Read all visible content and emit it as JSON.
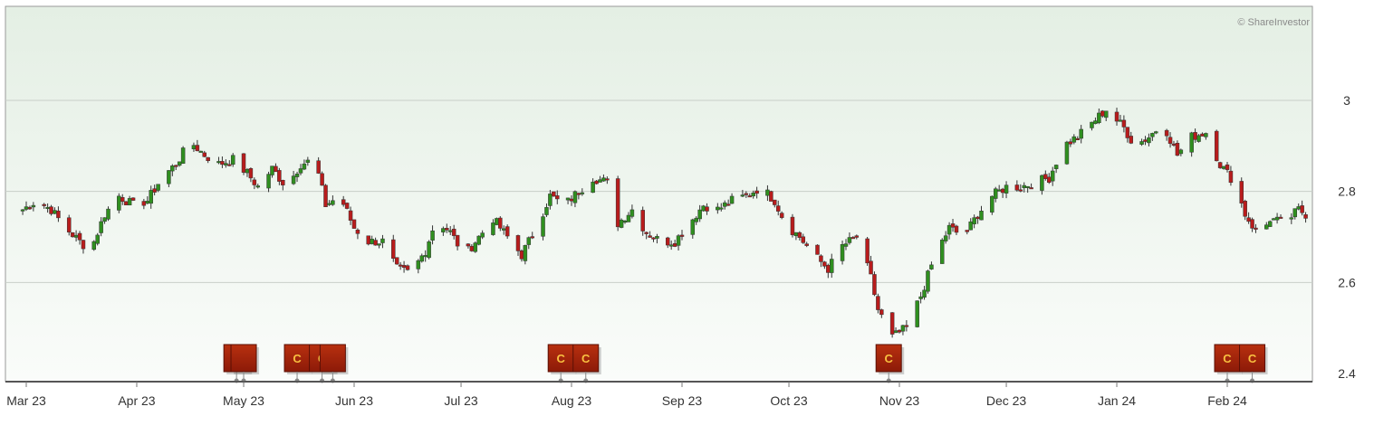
{
  "credit": "© ShareInvestor",
  "chart_data": {
    "type": "candlestick",
    "ylim": [
      2.4,
      3.0
    ],
    "yticks": [
      {
        "value": 2.4,
        "label": "2.4"
      },
      {
        "value": 2.6,
        "label": "2.6"
      },
      {
        "value": 2.8,
        "label": "2.8"
      },
      {
        "value": 3.0,
        "label": "3"
      }
    ],
    "months": [
      {
        "label": "Mar 23",
        "date": "2023-03-01"
      },
      {
        "label": "Apr 23",
        "date": "2023-04-01"
      },
      {
        "label": "May 23",
        "date": "2023-05-01"
      },
      {
        "label": "Jun 23",
        "date": "2023-06-01"
      },
      {
        "label": "Jul 23",
        "date": "2023-07-01"
      },
      {
        "label": "Aug 23",
        "date": "2023-08-01"
      },
      {
        "label": "Sep 23",
        "date": "2023-09-01"
      },
      {
        "label": "Oct 23",
        "date": "2023-10-01"
      },
      {
        "label": "Nov 23",
        "date": "2023-11-01"
      },
      {
        "label": "Dec 23",
        "date": "2023-12-01"
      },
      {
        "label": "Jan 24",
        "date": "2024-01-01"
      },
      {
        "label": "Feb 24",
        "date": "2024-02-01"
      }
    ],
    "series_points": [
      [
        "2023-02-28",
        2.76
      ],
      [
        "2023-03-04",
        2.78
      ],
      [
        "2023-03-08",
        2.76
      ],
      [
        "2023-03-12",
        2.72
      ],
      [
        "2023-03-16",
        2.69
      ],
      [
        "2023-03-19",
        2.67
      ],
      [
        "2023-03-23",
        2.75
      ],
      [
        "2023-03-27",
        2.79
      ],
      [
        "2023-03-31",
        2.77
      ],
      [
        "2023-04-04",
        2.78
      ],
      [
        "2023-04-08",
        2.83
      ],
      [
        "2023-04-12",
        2.86
      ],
      [
        "2023-04-16",
        2.91
      ],
      [
        "2023-04-20",
        2.88
      ],
      [
        "2023-04-24",
        2.86
      ],
      [
        "2023-04-28",
        2.87
      ],
      [
        "2023-05-02",
        2.84
      ],
      [
        "2023-05-05",
        2.81
      ],
      [
        "2023-05-09",
        2.85
      ],
      [
        "2023-05-13",
        2.81
      ],
      [
        "2023-05-17",
        2.86
      ],
      [
        "2023-05-21",
        2.87
      ],
      [
        "2023-05-24",
        2.77
      ],
      [
        "2023-05-28",
        2.79
      ],
      [
        "2023-06-01",
        2.72
      ],
      [
        "2023-06-05",
        2.69
      ],
      [
        "2023-06-09",
        2.69
      ],
      [
        "2023-06-13",
        2.63
      ],
      [
        "2023-06-17",
        2.62
      ],
      [
        "2023-06-21",
        2.67
      ],
      [
        "2023-06-24",
        2.74
      ],
      [
        "2023-06-28",
        2.71
      ],
      [
        "2023-07-02",
        2.66
      ],
      [
        "2023-07-06",
        2.7
      ],
      [
        "2023-07-10",
        2.74
      ],
      [
        "2023-07-14",
        2.7
      ],
      [
        "2023-07-18",
        2.66
      ],
      [
        "2023-07-22",
        2.72
      ],
      [
        "2023-07-26",
        2.79
      ],
      [
        "2023-07-30",
        2.77
      ],
      [
        "2023-08-03",
        2.8
      ],
      [
        "2023-08-07",
        2.83
      ],
      [
        "2023-08-11",
        2.82
      ],
      [
        "2023-08-14",
        2.73
      ],
      [
        "2023-08-18",
        2.76
      ],
      [
        "2023-08-22",
        2.71
      ],
      [
        "2023-08-26",
        2.69
      ],
      [
        "2023-08-30",
        2.69
      ],
      [
        "2023-09-03",
        2.73
      ],
      [
        "2023-09-07",
        2.77
      ],
      [
        "2023-09-11",
        2.76
      ],
      [
        "2023-09-15",
        2.78
      ],
      [
        "2023-09-19",
        2.79
      ],
      [
        "2023-09-23",
        2.81
      ],
      [
        "2023-09-27",
        2.78
      ],
      [
        "2023-09-30",
        2.73
      ],
      [
        "2023-10-04",
        2.7
      ],
      [
        "2023-10-08",
        2.66
      ],
      [
        "2023-10-12",
        2.63
      ],
      [
        "2023-10-16",
        2.68
      ],
      [
        "2023-10-20",
        2.7
      ],
      [
        "2023-10-24",
        2.61
      ],
      [
        "2023-10-26",
        2.54
      ],
      [
        "2023-10-30",
        2.48
      ],
      [
        "2023-11-03",
        2.5
      ],
      [
        "2023-11-07",
        2.57
      ],
      [
        "2023-11-11",
        2.66
      ],
      [
        "2023-11-15",
        2.72
      ],
      [
        "2023-11-19",
        2.7
      ],
      [
        "2023-11-23",
        2.75
      ],
      [
        "2023-11-27",
        2.79
      ],
      [
        "2023-12-01",
        2.81
      ],
      [
        "2023-12-05",
        2.81
      ],
      [
        "2023-12-09",
        2.82
      ],
      [
        "2023-12-13",
        2.83
      ],
      [
        "2023-12-17",
        2.9
      ],
      [
        "2023-12-21",
        2.92
      ],
      [
        "2023-12-25",
        2.95
      ],
      [
        "2023-12-29",
        2.98
      ],
      [
        "2024-01-03",
        2.94
      ],
      [
        "2024-01-06",
        2.9
      ],
      [
        "2024-01-10",
        2.92
      ],
      [
        "2024-01-14",
        2.95
      ],
      [
        "2024-01-18",
        2.88
      ],
      [
        "2024-01-22",
        2.92
      ],
      [
        "2024-01-26",
        2.93
      ],
      [
        "2024-01-30",
        2.86
      ],
      [
        "2024-02-03",
        2.82
      ],
      [
        "2024-02-06",
        2.75
      ],
      [
        "2024-02-10",
        2.7
      ],
      [
        "2024-02-13",
        2.74
      ],
      [
        "2024-02-17",
        2.73
      ],
      [
        "2024-02-21",
        2.76
      ],
      [
        "2024-02-23",
        2.75
      ]
    ],
    "markers": [
      {
        "label": "C",
        "date": "2023-04-29"
      },
      {
        "label": "",
        "date": "2023-05-01"
      },
      {
        "label": "C",
        "date": "2023-05-16"
      },
      {
        "label": "C",
        "date": "2023-05-23"
      },
      {
        "label": "",
        "date": "2023-05-26"
      },
      {
        "label": "C",
        "date": "2023-07-29"
      },
      {
        "label": "C",
        "date": "2023-08-05"
      },
      {
        "label": "C",
        "date": "2023-10-29"
      },
      {
        "label": "C",
        "date": "2024-02-01"
      },
      {
        "label": "C",
        "date": "2024-02-08"
      }
    ],
    "colors": {
      "up": "#2f8f1f",
      "down": "#b81c1c",
      "grid": "#c8cfc8",
      "marker": "#a0200c",
      "marker_text": "#f8c040",
      "background_top": "#e4efe4",
      "background_bottom": "#fafcfa"
    }
  }
}
